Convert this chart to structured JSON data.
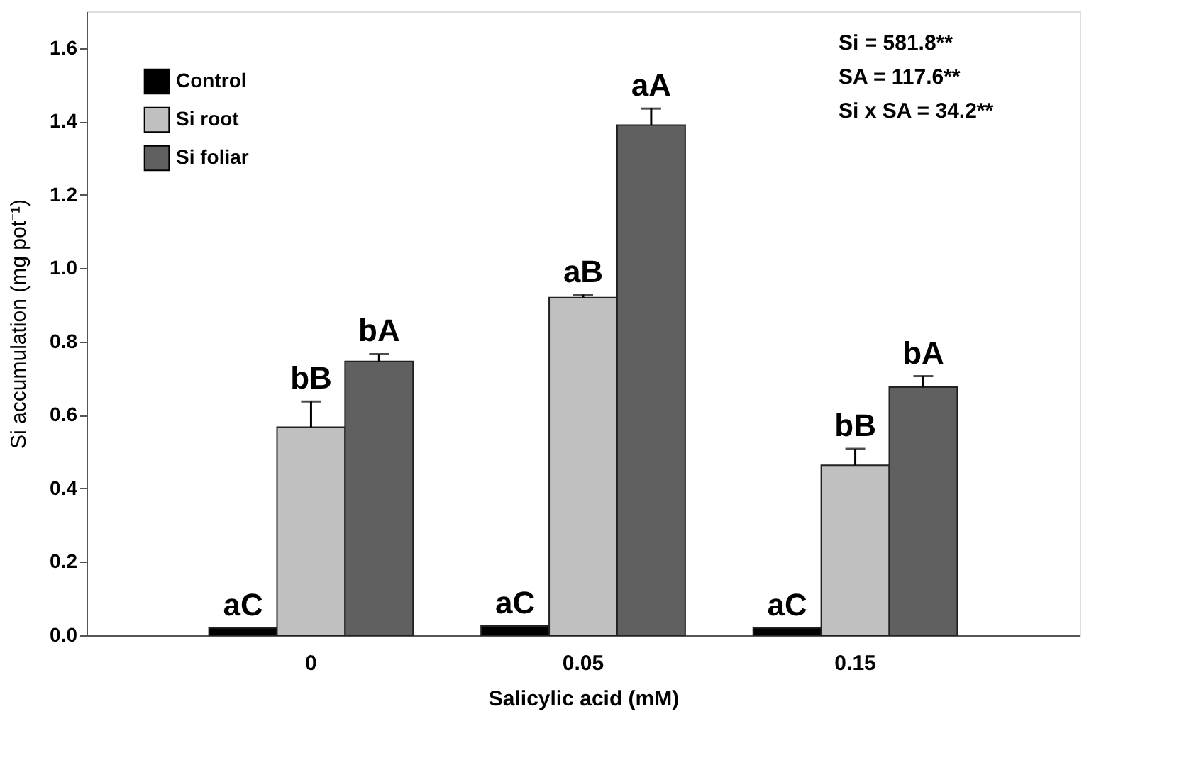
{
  "chart_data": {
    "type": "bar",
    "xlabel": "Salicylic acid (mM)",
    "ylabel": "Si accumulation (mg pot⁻¹)",
    "categories": [
      "0",
      "0.05",
      "0.15"
    ],
    "series": [
      {
        "name": "Control",
        "color": "#000000",
        "values": [
          0.02,
          0.025,
          0.02
        ],
        "errors": [
          null,
          null,
          null
        ],
        "value_labels": [
          "aC",
          "aC",
          "aC"
        ]
      },
      {
        "name": "Si  root",
        "color": "#c0c0c0",
        "values": [
          0.567,
          0.92,
          0.463
        ],
        "errors": [
          0.07,
          0.008,
          0.045
        ],
        "value_labels": [
          "bB",
          "aB",
          "bB"
        ]
      },
      {
        "name": "Si  foliar",
        "color": "#606060",
        "values": [
          0.746,
          1.39,
          0.676
        ],
        "errors": [
          0.02,
          0.045,
          0.03
        ],
        "value_labels": [
          "bA",
          "aA",
          "bA"
        ]
      }
    ],
    "ylim": [
      0,
      1.7
    ],
    "yticks": [
      {
        "value": 0,
        "label": "0.0"
      },
      {
        "value": 0.2,
        "label": "0.2"
      },
      {
        "value": 0.4,
        "label": "0.4"
      },
      {
        "value": 0.6,
        "label": "0.6"
      },
      {
        "value": 0.8,
        "label": "0.8"
      },
      {
        "value": 1.0,
        "label": "1.0"
      },
      {
        "value": 1.2,
        "label": "1.2"
      },
      {
        "value": 1.4,
        "label": "1.4"
      },
      {
        "value": 1.6,
        "label": "1.6"
      }
    ],
    "annotations": [
      "Si = 581.8**",
      "SA = 117.6**",
      "Si x SA = 34.2**"
    ],
    "legend": "top left",
    "grid": false
  }
}
